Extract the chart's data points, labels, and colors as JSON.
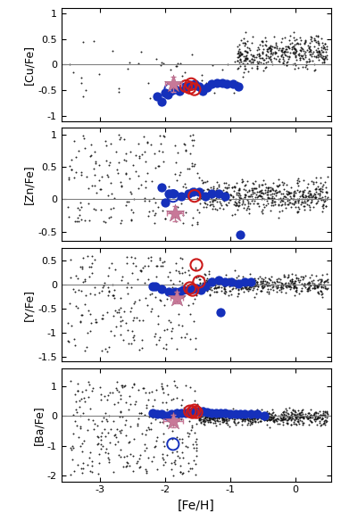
{
  "panels": [
    {
      "ylabel": "[Cu/Fe]",
      "ylim": [
        -1.1,
        1.1
      ],
      "yticks": [
        -1,
        -0.5,
        0,
        0.5,
        1
      ],
      "yline": 0,
      "blue_dots": [
        [
          -2.12,
          -0.62
        ],
        [
          -2.06,
          -0.72
        ],
        [
          -2.0,
          -0.55
        ],
        [
          -1.96,
          -0.58
        ],
        [
          -1.85,
          -0.47
        ],
        [
          -1.78,
          -0.52
        ],
        [
          -1.7,
          -0.42
        ],
        [
          -1.62,
          -0.4
        ],
        [
          -1.55,
          -0.38
        ],
        [
          -1.48,
          -0.42
        ],
        [
          -1.42,
          -0.52
        ],
        [
          -1.35,
          -0.45
        ],
        [
          -1.28,
          -0.38
        ],
        [
          -1.2,
          -0.35
        ],
        [
          -1.12,
          -0.35
        ],
        [
          -1.05,
          -0.38
        ],
        [
          -0.95,
          -0.38
        ],
        [
          -0.88,
          -0.42
        ]
      ],
      "red_circles": [
        [
          -1.68,
          -0.42
        ],
        [
          -1.62,
          -0.45
        ],
        [
          -1.55,
          -0.48
        ],
        [
          -1.6,
          -0.38
        ]
      ],
      "blue_circles": [
        [
          -1.92,
          -0.48
        ]
      ],
      "star": [
        -1.88,
        -0.38
      ],
      "star_err": [
        0.12,
        0.15
      ]
    },
    {
      "ylabel": "[Zn/Fe]",
      "ylim": [
        -0.65,
        1.1
      ],
      "yticks": [
        -0.5,
        0,
        0.5,
        1
      ],
      "yline": 0,
      "blue_dots": [
        [
          -2.05,
          0.18
        ],
        [
          -2.0,
          -0.05
        ],
        [
          -1.95,
          0.08
        ],
        [
          -1.88,
          0.08
        ],
        [
          -1.75,
          0.05
        ],
        [
          -1.65,
          0.08
        ],
        [
          -1.58,
          0.12
        ],
        [
          -1.48,
          0.12
        ],
        [
          -1.38,
          0.05
        ],
        [
          -1.28,
          0.08
        ],
        [
          -1.18,
          0.08
        ],
        [
          -1.08,
          0.05
        ],
        [
          -0.85,
          -0.55
        ]
      ],
      "red_circles": [
        [
          -1.55,
          0.05
        ]
      ],
      "blue_circles": [
        [
          -1.88,
          0.05
        ]
      ],
      "star": [
        -1.85,
        -0.22
      ],
      "star_err": [
        0.12,
        0.12
      ]
    },
    {
      "ylabel": "[Y/Fe]",
      "ylim": [
        -1.6,
        0.75
      ],
      "yticks": [
        -1.5,
        -1,
        -0.5,
        0,
        0.5
      ],
      "yline": 0,
      "blue_dots": [
        [
          -2.2,
          -0.05
        ],
        [
          -2.15,
          -0.05
        ],
        [
          -2.05,
          -0.1
        ],
        [
          -1.95,
          -0.15
        ],
        [
          -1.85,
          -0.15
        ],
        [
          -1.78,
          -0.15
        ],
        [
          -1.72,
          -0.12
        ],
        [
          -1.65,
          -0.12
        ],
        [
          -1.58,
          -0.1
        ],
        [
          -1.52,
          -0.08
        ],
        [
          -1.45,
          -0.12
        ],
        [
          -1.38,
          -0.05
        ],
        [
          -1.28,
          0.05
        ],
        [
          -1.18,
          0.08
        ],
        [
          -1.08,
          0.05
        ],
        [
          -0.98,
          0.05
        ],
        [
          -0.88,
          0.02
        ],
        [
          -0.78,
          0.05
        ],
        [
          -0.68,
          0.05
        ],
        [
          -1.15,
          -0.58
        ]
      ],
      "red_circles": [
        [
          -1.62,
          -0.08
        ],
        [
          -1.58,
          -0.12
        ],
        [
          -1.52,
          0.4
        ],
        [
          -1.48,
          0.05
        ]
      ],
      "blue_circles": [],
      "star": [
        -1.82,
        -0.28
      ],
      "star_err": [
        0.1,
        0.12
      ]
    },
    {
      "ylabel": "[Ba/Fe]",
      "ylim": [
        -2.2,
        1.6
      ],
      "yticks": [
        -2,
        -1,
        0,
        1
      ],
      "yline": 0,
      "blue_dots": [
        [
          -2.2,
          0.08
        ],
        [
          -2.12,
          0.05
        ],
        [
          -2.05,
          0.05
        ],
        [
          -1.98,
          0.0
        ],
        [
          -1.9,
          0.05
        ],
        [
          -1.82,
          0.08
        ],
        [
          -1.75,
          0.08
        ],
        [
          -1.68,
          0.1
        ],
        [
          -1.62,
          0.12
        ],
        [
          -1.55,
          0.15
        ],
        [
          -1.48,
          0.15
        ],
        [
          -1.42,
          0.15
        ],
        [
          -1.35,
          0.12
        ],
        [
          -1.28,
          0.1
        ],
        [
          -1.22,
          0.08
        ],
        [
          -1.15,
          0.08
        ],
        [
          -1.08,
          0.08
        ],
        [
          -1.0,
          0.05
        ],
        [
          -0.92,
          0.05
        ],
        [
          -0.85,
          0.05
        ],
        [
          -0.78,
          0.05
        ],
        [
          -0.68,
          0.05
        ],
        [
          -0.58,
          0.05
        ],
        [
          -0.48,
          0.0
        ]
      ],
      "red_circles": [
        [
          -1.62,
          0.15
        ],
        [
          -1.58,
          0.12
        ],
        [
          -1.55,
          0.18
        ],
        [
          -1.52,
          0.12
        ]
      ],
      "blue_circles": [
        [
          -1.88,
          -0.95
        ]
      ],
      "star": [
        -1.88,
        -0.18
      ],
      "star_err": [
        0.15,
        0.2
      ]
    }
  ],
  "xlabel": "[Fe/H]",
  "xlim": [
    -3.6,
    0.55
  ],
  "xticks": [
    -3,
    -2,
    -1,
    0
  ],
  "blue_dot_color": "#1530bb",
  "red_circle_color": "#cc1a1a",
  "blue_circle_color": "#1530bb",
  "star_color": "#c87898",
  "bg_dot_color": "#111111",
  "bg_dot_size": 2,
  "blue_dot_size": 55,
  "red_circle_size": 90,
  "blue_circle_size": 90
}
